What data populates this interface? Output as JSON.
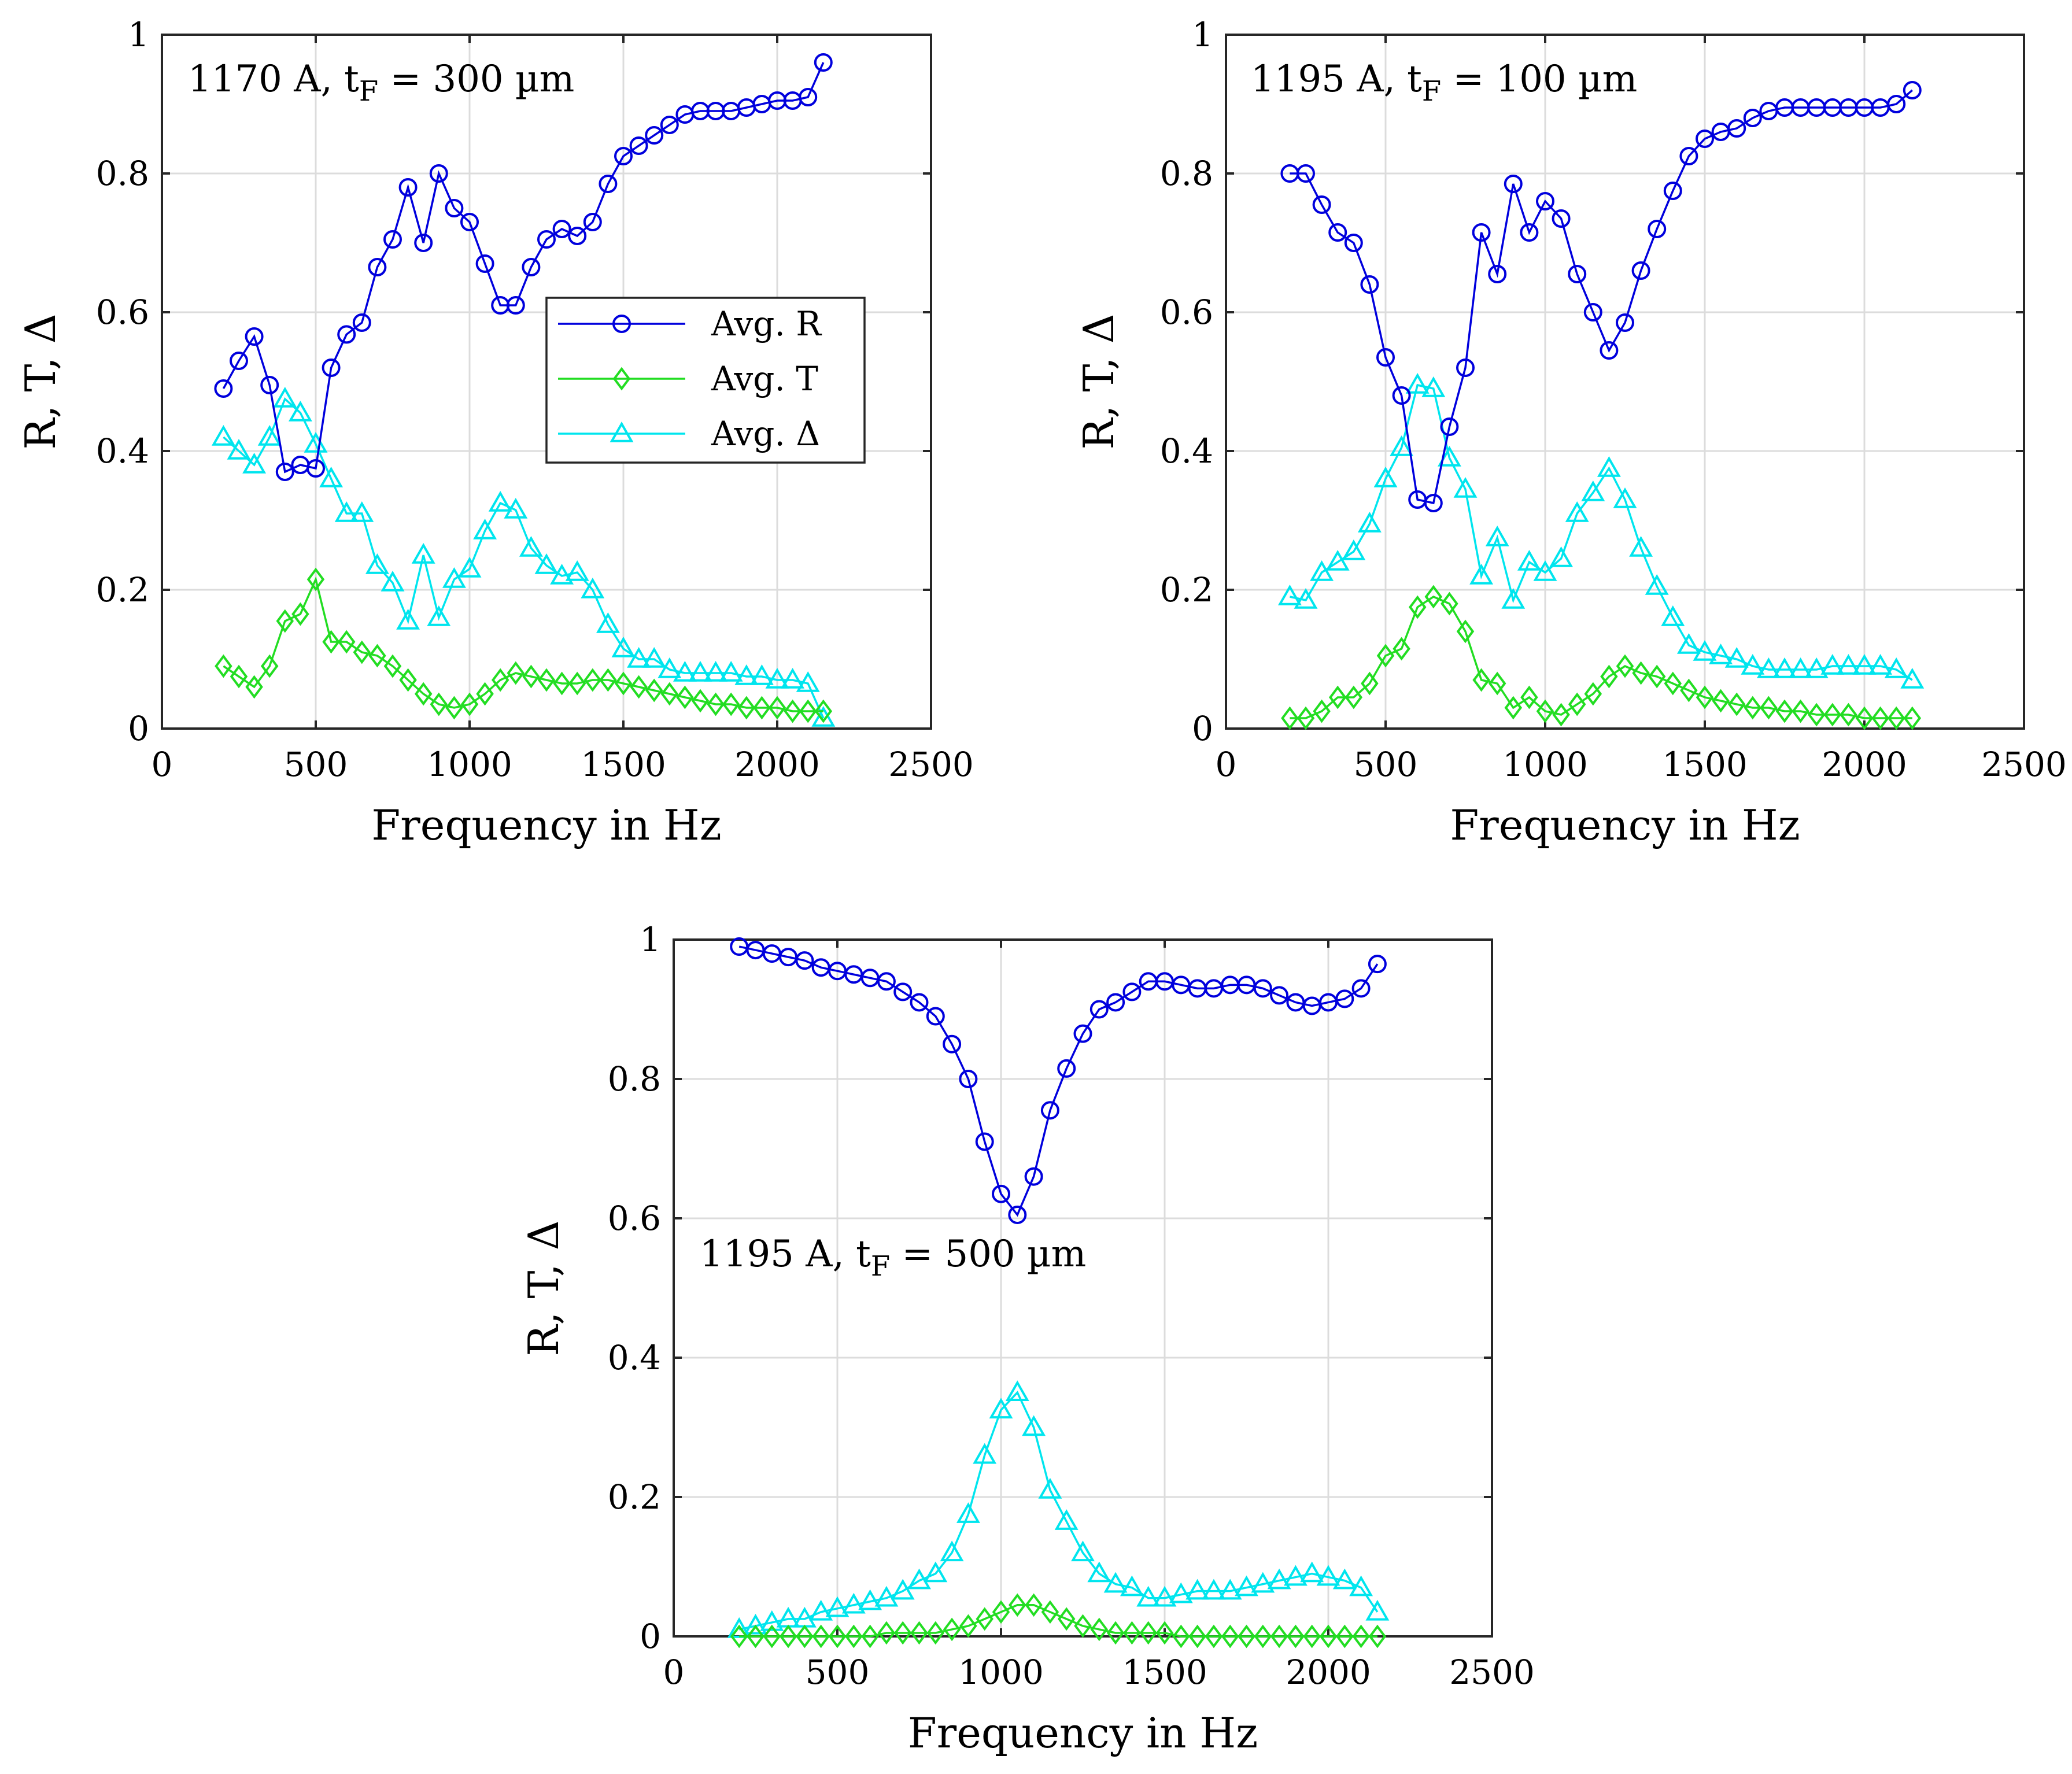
{
  "chart_data": [
    {
      "type": "line",
      "annotation": "1170 A, t",
      "annotation_sub": "F",
      "annotation_tail": " = 300 µm",
      "xlabel": "Frequency in Hz",
      "ylabel": "R, T, Δ",
      "xlim": [
        0,
        2500
      ],
      "ylim": [
        0,
        1
      ],
      "xticks": [
        "0",
        "500",
        "1000",
        "1500",
        "2000",
        "2500"
      ],
      "yticks": [
        "0",
        "0.2",
        "0.4",
        "0.6",
        "0.8",
        "1"
      ],
      "grid": true,
      "legend": "inside center",
      "x": [
        200,
        250,
        300,
        350,
        400,
        450,
        500,
        550,
        600,
        650,
        700,
        750,
        800,
        850,
        900,
        950,
        1000,
        1050,
        1100,
        1150,
        1200,
        1250,
        1300,
        1350,
        1400,
        1450,
        1500,
        1550,
        1600,
        1650,
        1700,
        1750,
        1800,
        1850,
        1900,
        1950,
        2000,
        2050,
        2100,
        2150
      ],
      "series": [
        {
          "name": "Avg. R",
          "marker": "circle",
          "color": "#0000dd",
          "values": [
            0.49,
            0.53,
            0.565,
            0.495,
            0.37,
            0.38,
            0.375,
            0.52,
            0.568,
            0.585,
            0.665,
            0.705,
            0.78,
            0.7,
            0.8,
            0.75,
            0.73,
            0.67,
            0.61,
            0.61,
            0.665,
            0.705,
            0.72,
            0.71,
            0.73,
            0.785,
            0.825,
            0.84,
            0.855,
            0.87,
            0.885,
            0.89,
            0.89,
            0.89,
            0.895,
            0.9,
            0.905,
            0.905,
            0.91,
            0.96
          ]
        },
        {
          "name": "Avg. T",
          "marker": "diamond",
          "color": "#22dd22",
          "values": [
            0.09,
            0.075,
            0.06,
            0.09,
            0.155,
            0.165,
            0.215,
            0.125,
            0.125,
            0.11,
            0.105,
            0.09,
            0.07,
            0.05,
            0.035,
            0.03,
            0.035,
            0.05,
            0.07,
            0.08,
            0.075,
            0.07,
            0.065,
            0.065,
            0.07,
            0.07,
            0.065,
            0.06,
            0.055,
            0.05,
            0.045,
            0.04,
            0.035,
            0.035,
            0.03,
            0.03,
            0.03,
            0.025,
            0.025,
            0.025
          ]
        },
        {
          "name": "Avg. Δ",
          "marker": "triangle",
          "color": "#00e5ee",
          "values": [
            0.42,
            0.4,
            0.38,
            0.42,
            0.475,
            0.455,
            0.41,
            0.36,
            0.31,
            0.31,
            0.235,
            0.21,
            0.155,
            0.25,
            0.16,
            0.215,
            0.23,
            0.285,
            0.325,
            0.315,
            0.26,
            0.235,
            0.22,
            0.225,
            0.2,
            0.15,
            0.115,
            0.1,
            0.1,
            0.085,
            0.08,
            0.08,
            0.08,
            0.08,
            0.075,
            0.075,
            0.07,
            0.07,
            0.065,
            0.015
          ]
        }
      ]
    },
    {
      "type": "line",
      "annotation": "1195 A, t",
      "annotation_sub": "F",
      "annotation_tail": " = 100 µm",
      "xlabel": "Frequency in Hz",
      "ylabel": "R, T, Δ",
      "xlim": [
        0,
        2500
      ],
      "ylim": [
        0,
        1
      ],
      "xticks": [
        "0",
        "500",
        "1000",
        "1500",
        "2000",
        "2500"
      ],
      "yticks": [
        "0",
        "0.2",
        "0.4",
        "0.6",
        "0.8",
        "1"
      ],
      "grid": true,
      "x": [
        200,
        250,
        300,
        350,
        400,
        450,
        500,
        550,
        600,
        650,
        700,
        750,
        800,
        850,
        900,
        950,
        1000,
        1050,
        1100,
        1150,
        1200,
        1250,
        1300,
        1350,
        1400,
        1450,
        1500,
        1550,
        1600,
        1650,
        1700,
        1750,
        1800,
        1850,
        1900,
        1950,
        2000,
        2050,
        2100,
        2150
      ],
      "series": [
        {
          "name": "Avg. R",
          "marker": "circle",
          "color": "#0000dd",
          "values": [
            0.8,
            0.8,
            0.755,
            0.715,
            0.7,
            0.64,
            0.535,
            0.48,
            0.33,
            0.325,
            0.435,
            0.52,
            0.715,
            0.655,
            0.785,
            0.715,
            0.76,
            0.735,
            0.655,
            0.6,
            0.545,
            0.585,
            0.66,
            0.72,
            0.775,
            0.825,
            0.85,
            0.86,
            0.865,
            0.88,
            0.89,
            0.895,
            0.895,
            0.895,
            0.895,
            0.895,
            0.895,
            0.895,
            0.9,
            0.92
          ]
        },
        {
          "name": "Avg. T",
          "marker": "diamond",
          "color": "#22dd22",
          "values": [
            0.015,
            0.015,
            0.025,
            0.045,
            0.045,
            0.065,
            0.105,
            0.115,
            0.175,
            0.19,
            0.18,
            0.14,
            0.07,
            0.065,
            0.03,
            0.045,
            0.025,
            0.02,
            0.035,
            0.05,
            0.075,
            0.09,
            0.08,
            0.075,
            0.065,
            0.055,
            0.045,
            0.04,
            0.035,
            0.03,
            0.03,
            0.025,
            0.025,
            0.02,
            0.02,
            0.02,
            0.015,
            0.015,
            0.015,
            0.015
          ]
        },
        {
          "name": "Avg. Δ",
          "marker": "triangle",
          "color": "#00e5ee",
          "values": [
            0.19,
            0.185,
            0.225,
            0.24,
            0.255,
            0.295,
            0.36,
            0.405,
            0.495,
            0.49,
            0.39,
            0.345,
            0.22,
            0.275,
            0.185,
            0.24,
            0.225,
            0.245,
            0.31,
            0.34,
            0.375,
            0.33,
            0.26,
            0.205,
            0.16,
            0.12,
            0.11,
            0.105,
            0.1,
            0.09,
            0.085,
            0.085,
            0.085,
            0.085,
            0.09,
            0.09,
            0.09,
            0.09,
            0.085,
            0.07
          ]
        }
      ]
    },
    {
      "type": "line",
      "annotation": "1195 A, t",
      "annotation_sub": "F",
      "annotation_tail": " = 500 µm",
      "xlabel": "Frequency in Hz",
      "ylabel": "R, T, Δ",
      "xlim": [
        0,
        2500
      ],
      "ylim": [
        0,
        1
      ],
      "xticks": [
        "0",
        "500",
        "1000",
        "1500",
        "2000",
        "2500"
      ],
      "yticks": [
        "0",
        "0.2",
        "0.4",
        "0.6",
        "0.8",
        "1"
      ],
      "grid": true,
      "x": [
        200,
        250,
        300,
        350,
        400,
        450,
        500,
        550,
        600,
        650,
        700,
        750,
        800,
        850,
        900,
        950,
        1000,
        1050,
        1100,
        1150,
        1200,
        1250,
        1300,
        1350,
        1400,
        1450,
        1500,
        1550,
        1600,
        1650,
        1700,
        1750,
        1800,
        1850,
        1900,
        1950,
        2000,
        2050,
        2100,
        2150
      ],
      "series": [
        {
          "name": "Avg. R",
          "marker": "circle",
          "color": "#0000dd",
          "values": [
            0.99,
            0.985,
            0.98,
            0.975,
            0.97,
            0.96,
            0.955,
            0.95,
            0.945,
            0.94,
            0.925,
            0.91,
            0.89,
            0.85,
            0.8,
            0.71,
            0.635,
            0.605,
            0.66,
            0.755,
            0.815,
            0.865,
            0.9,
            0.91,
            0.925,
            0.94,
            0.94,
            0.935,
            0.93,
            0.93,
            0.935,
            0.935,
            0.93,
            0.92,
            0.91,
            0.905,
            0.91,
            0.915,
            0.93,
            0.965
          ]
        },
        {
          "name": "Avg. T",
          "marker": "diamond",
          "color": "#22dd22",
          "values": [
            0.0,
            0.0,
            0.0,
            0.0,
            0.0,
            0.0,
            0.0,
            0.0,
            0.0,
            0.005,
            0.005,
            0.005,
            0.005,
            0.01,
            0.015,
            0.025,
            0.035,
            0.045,
            0.045,
            0.035,
            0.025,
            0.015,
            0.01,
            0.005,
            0.005,
            0.005,
            0.005,
            0.0,
            0.0,
            0.0,
            0.0,
            0.0,
            0.0,
            0.0,
            0.0,
            0.0,
            0.0,
            0.0,
            0.0,
            0.0
          ]
        },
        {
          "name": "Avg. Δ",
          "marker": "triangle",
          "color": "#00e5ee",
          "values": [
            0.01,
            0.015,
            0.02,
            0.025,
            0.025,
            0.035,
            0.04,
            0.045,
            0.05,
            0.055,
            0.065,
            0.08,
            0.09,
            0.12,
            0.175,
            0.26,
            0.325,
            0.35,
            0.3,
            0.21,
            0.165,
            0.12,
            0.09,
            0.075,
            0.07,
            0.055,
            0.055,
            0.06,
            0.065,
            0.065,
            0.065,
            0.07,
            0.075,
            0.08,
            0.085,
            0.09,
            0.085,
            0.08,
            0.07,
            0.035
          ]
        }
      ]
    }
  ]
}
